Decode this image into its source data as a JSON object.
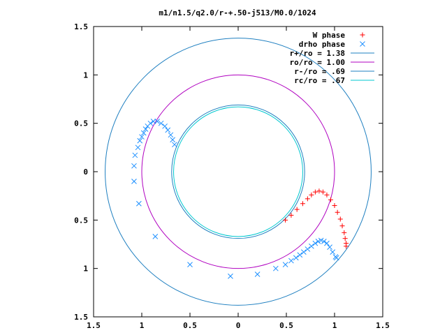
{
  "chart_data": {
    "type": "scatter",
    "title": "m1/n1.5/q2.0/r-+.50-j513/M0.0/1024",
    "xlabel": "",
    "ylabel": "",
    "xlim": [
      -1.5,
      1.5
    ],
    "ylim": [
      -1.5,
      1.5
    ],
    "x_ticks": [
      -1.5,
      -1,
      -0.5,
      0,
      0.5,
      1,
      1.5
    ],
    "x_tick_labels": [
      "1.5",
      "1",
      "0.5",
      "0",
      "0.5",
      "1",
      "1.5"
    ],
    "y_ticks": [
      1.5,
      1,
      0.5,
      0,
      -0.5,
      -1,
      -1.5
    ],
    "y_tick_labels": [
      "1.5",
      "1",
      "0.5",
      "0",
      "0.5",
      "1",
      "1.5"
    ],
    "grid": false,
    "legend_position": "top-right",
    "series": [
      {
        "name": "W phase",
        "marker": "plus",
        "color": "#ff0000",
        "x": [
          0.49,
          0.55,
          0.61,
          0.67,
          0.72,
          0.76,
          0.8,
          0.84,
          0.88,
          0.92,
          0.96,
          1.0,
          1.03,
          1.06,
          1.08,
          1.1,
          1.11,
          1.12,
          1.12
        ],
        "y": [
          -0.5,
          -0.45,
          -0.39,
          -0.33,
          -0.28,
          -0.24,
          -0.21,
          -0.2,
          -0.21,
          -0.24,
          -0.29,
          -0.35,
          -0.42,
          -0.49,
          -0.56,
          -0.63,
          -0.69,
          -0.74,
          -0.77
        ]
      },
      {
        "name": "drho phase",
        "marker": "cross",
        "color": "#1e90ff",
        "x": [
          -0.66,
          -0.68,
          -0.7,
          -0.73,
          -0.76,
          -0.8,
          -0.84,
          -0.88,
          -0.91,
          -0.94,
          -0.96,
          -0.98,
          -1.0,
          -1.02,
          -1.04,
          -1.07,
          -1.08,
          -1.08,
          -1.03,
          -0.86,
          -0.5,
          -0.08,
          0.2,
          0.39,
          0.49,
          0.55,
          0.6,
          0.64,
          0.68,
          0.72,
          0.76,
          0.8,
          0.83,
          0.86,
          0.89,
          0.92,
          0.95,
          0.98,
          1.01,
          1.02
        ],
        "y": [
          0.28,
          0.33,
          0.38,
          0.43,
          0.47,
          0.5,
          0.52,
          0.52,
          0.5,
          0.47,
          0.44,
          0.4,
          0.36,
          0.32,
          0.25,
          0.17,
          0.06,
          -0.1,
          -0.33,
          -0.67,
          -0.96,
          -1.08,
          -1.06,
          -1.0,
          -0.96,
          -0.92,
          -0.89,
          -0.86,
          -0.83,
          -0.8,
          -0.77,
          -0.74,
          -0.72,
          -0.71,
          -0.72,
          -0.74,
          -0.78,
          -0.83,
          -0.88,
          -0.89
        ]
      },
      {
        "name": "r+/ro = 1.38",
        "type": "circle",
        "radius": 1.38,
        "color": "#1e7fc0"
      },
      {
        "name": "ro/ro = 1.00",
        "type": "circle",
        "radius": 1.0,
        "color": "#b000c0"
      },
      {
        "name": "r-/ro = .69",
        "type": "circle",
        "radius": 0.69,
        "color": "#1e7fc0"
      },
      {
        "name": "rc/ro = .67",
        "type": "circle",
        "radius": 0.67,
        "color": "#00c8d0"
      }
    ]
  }
}
